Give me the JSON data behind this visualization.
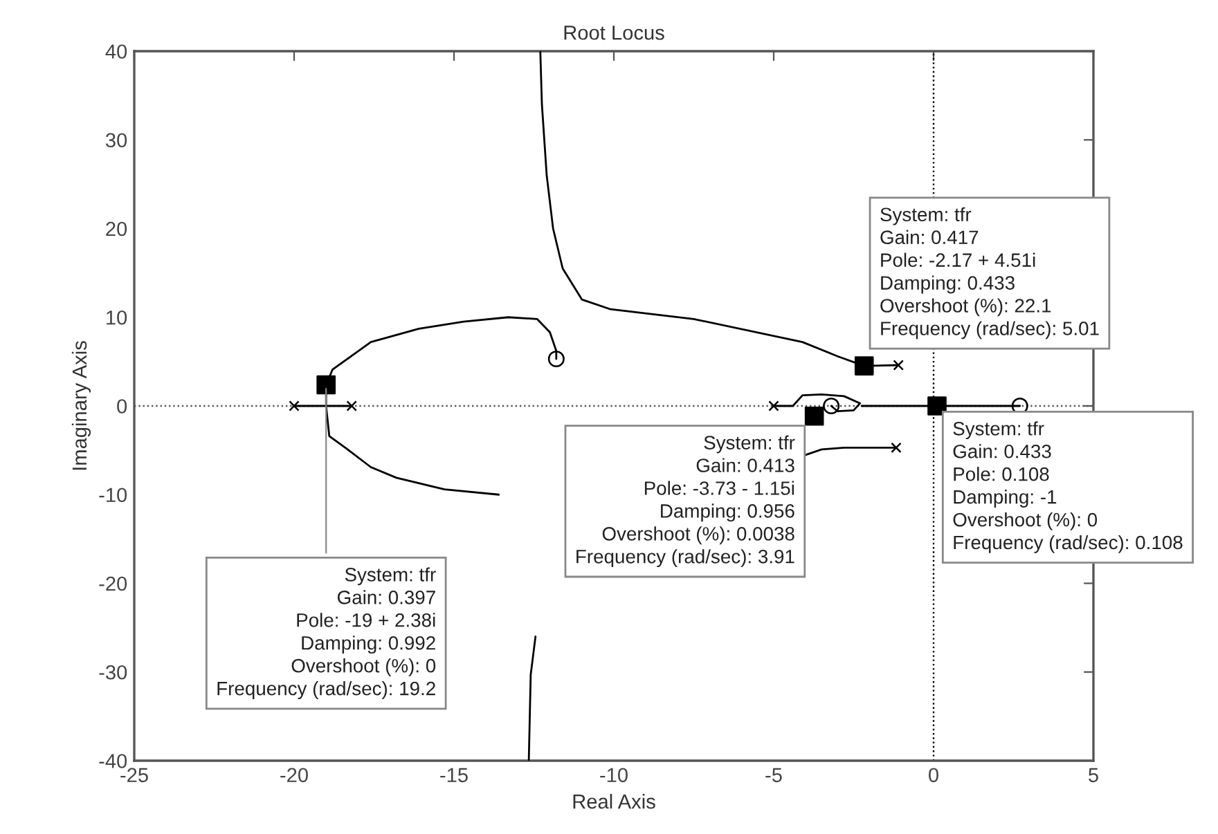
{
  "chart_data": {
    "type": "line",
    "title": "Root Locus",
    "xlabel": "Real Axis",
    "ylabel": "Imaginary Axis",
    "xlim": [
      -25,
      5
    ],
    "ylim": [
      -40,
      40
    ],
    "xticks": [
      -25,
      -20,
      -15,
      -10,
      -5,
      0,
      5
    ],
    "yticks": [
      -40,
      -30,
      -20,
      -10,
      0,
      10,
      20,
      30,
      40
    ],
    "ref_lines": [
      {
        "axis": "y",
        "value": 0,
        "color": "#555555",
        "line_style": "dotted"
      },
      {
        "axis": "x",
        "value": 0,
        "color": "#000000",
        "line_style": "dotted"
      }
    ],
    "series": [
      {
        "color": "#000000",
        "line_style": "solid",
        "x": [
          -12.3,
          -12.25,
          -12.1,
          -11.9,
          -11.6,
          -11.0,
          -10.1,
          -7.5,
          -4.1,
          -3.0,
          -2.17,
          -1.1
        ],
        "values": [
          40,
          34,
          26,
          20,
          15.5,
          12,
          10.9,
          9.8,
          7.2,
          5.6,
          4.51,
          4.6
        ]
      },
      {
        "color": "#000000",
        "line_style": "solid",
        "x": [
          -13.6,
          -15.3,
          -16.8,
          -17.6,
          -18.4,
          -18.9,
          -19,
          -19,
          -18.8,
          -17.6,
          -16.1,
          -14.7,
          -13.3,
          -12.4,
          -12.0,
          -11.8,
          -11.8,
          null,
          -4.07,
          -3.5,
          -2.8,
          -1.17
        ],
        "values": [
          -10.0,
          -9.4,
          -8.1,
          -6.9,
          -4.7,
          -3.4,
          0,
          2.38,
          4.1,
          7.2,
          8.7,
          9.5,
          10.0,
          9.8,
          8.3,
          6.2,
          5.3,
          null,
          -5.6,
          -4.9,
          -4.7,
          -4.7
        ]
      },
      {
        "color": "#000000",
        "line_style": "solid",
        "x": [
          -12.45,
          -12.6,
          -12.66
        ],
        "values": [
          -26.0,
          -30.3,
          -40
        ]
      },
      {
        "color": "#000000",
        "line_style": "solid",
        "x": [
          -20,
          -18.2
        ],
        "values": [
          0,
          0
        ]
      },
      {
        "color": "#000000",
        "line_style": "solid",
        "x": [
          -5.0,
          -4.4,
          -4.1,
          -3.5,
          -2.8,
          -2.3,
          -2.5,
          -3.0,
          -3.2
        ],
        "values": [
          0,
          0,
          1.2,
          1.3,
          1.1,
          0.3,
          -0.5,
          -0.6,
          0
        ]
      },
      {
        "color": "#000000",
        "line_style": "solid",
        "x": [
          -2.25,
          2.7
        ],
        "values": [
          0,
          0
        ]
      },
      {
        "type": "scatter",
        "marker": "cross",
        "color": "#000000",
        "x": [
          -20,
          -18.2,
          -5.0,
          -1.1,
          -1.17
        ],
        "values": [
          0,
          0,
          0,
          4.6,
          -4.7
        ]
      },
      {
        "type": "scatter",
        "marker": "circle",
        "color": "#000000",
        "x": [
          -11.8,
          -3.2,
          2.7
        ],
        "values": [
          5.3,
          0,
          0
        ]
      },
      {
        "type": "scatter",
        "marker": "square",
        "color": "#000000",
        "x": [
          -19,
          -2.17,
          -3.73,
          0.108
        ],
        "values": [
          2.38,
          4.51,
          -1.15,
          0
        ]
      }
    ],
    "annotations": [
      {
        "text": "System: tfr\nGain: 0.397\nPole: -19 + 2.38i\nDamping: 0.992\nOvershoot (%): 0\nFrequency (rad/sec): 19.2",
        "x": -19,
        "y": 2.38
      },
      {
        "text": "System: tfr\nGain: 0.417\nPole: -2.17 + 4.51i\nDamping: 0.433\nOvershoot (%): 22.1\nFrequency (rad/sec): 5.01",
        "x": -2.17,
        "y": 4.51
      },
      {
        "text": "System: tfr\nGain: 0.413\nPole: -3.73 - 1.15i\nDamping: 0.956\nOvershoot (%): 0.0038\nFrequency (rad/sec): 3.91",
        "x": -3.73,
        "y": -1.15
      },
      {
        "text": "System: tfr\nGain: 0.433\nPole: 0.108\nDamping: -1\nOvershoot (%): 0\nFrequency (rad/sec): 0.108",
        "x": 0.108,
        "y": 0
      }
    ]
  }
}
